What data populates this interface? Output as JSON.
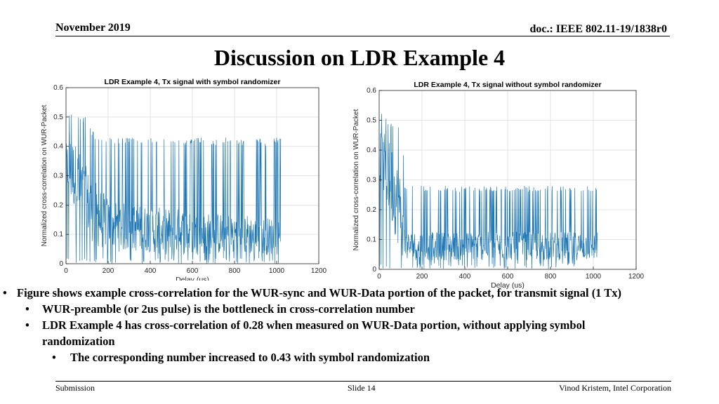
{
  "header": {
    "date": "November 2019",
    "doc_id": "doc.: IEEE 802.11-19/1838r0"
  },
  "title": "Discussion on LDR Example 4",
  "chart_data": [
    {
      "type": "line",
      "title": "LDR Example 4, Tx signal with symbol randomizer",
      "xlabel": "Delay (us)",
      "ylabel": "Normalized cross-correlation on WUR-Packet",
      "xlim": [
        0,
        1200
      ],
      "ylim": [
        0,
        0.6
      ],
      "xticks": [
        0,
        200,
        400,
        600,
        800,
        1000,
        1200
      ],
      "yticks": [
        0,
        0.1,
        0.2,
        0.3,
        0.4,
        0.5,
        0.6
      ],
      "grid": true,
      "color": "#1f77b4",
      "x": [
        0,
        20,
        40,
        60,
        80,
        100,
        120,
        140,
        160,
        200,
        250,
        300,
        350,
        400,
        450,
        500,
        550,
        600,
        650,
        700,
        750,
        800,
        850,
        900,
        950,
        1000,
        1020
      ],
      "envelope_low": [
        0.28,
        0.2,
        0.18,
        0.15,
        0.12,
        0.1,
        0.08,
        0.06,
        0.05,
        0.05,
        0.04,
        0.04,
        0.04,
        0.04,
        0.03,
        0.03,
        0.03,
        0.03,
        0.03,
        0.03,
        0.03,
        0.03,
        0.03,
        0.03,
        0.03,
        0.03,
        0.03
      ],
      "envelope_mid": [
        0.36,
        0.35,
        0.33,
        0.3,
        0.27,
        0.24,
        0.22,
        0.2,
        0.18,
        0.16,
        0.15,
        0.14,
        0.14,
        0.14,
        0.13,
        0.13,
        0.13,
        0.12,
        0.12,
        0.12,
        0.12,
        0.12,
        0.12,
        0.11,
        0.11,
        0.11,
        0.11
      ],
      "envelope_high": [
        0.49,
        0.52,
        0.5,
        0.51,
        0.5,
        0.51,
        0.46,
        0.44,
        0.43,
        0.43,
        0.43,
        0.43,
        0.43,
        0.43,
        0.43,
        0.43,
        0.42,
        0.43,
        0.43,
        0.42,
        0.43,
        0.43,
        0.42,
        0.43,
        0.42,
        0.43,
        0.43
      ]
    },
    {
      "type": "line",
      "title": "LDR Example 4, Tx signal without symbol randomizer",
      "xlabel": "Delay (us)",
      "ylabel": "Normalized cross-correlation on WUR-Packet",
      "xlim": [
        0,
        1200
      ],
      "ylim": [
        0,
        0.6
      ],
      "xticks": [
        0,
        200,
        400,
        600,
        800,
        1000,
        1200
      ],
      "yticks": [
        0,
        0.1,
        0.2,
        0.3,
        0.4,
        0.5,
        0.6
      ],
      "grid": true,
      "color": "#1f77b4",
      "x": [
        0,
        20,
        40,
        60,
        80,
        100,
        110,
        120,
        140,
        200,
        400,
        600,
        800,
        1000,
        1020
      ],
      "envelope_low": [
        0.3,
        0.25,
        0.2,
        0.15,
        0.1,
        0.06,
        0.04,
        0.03,
        0.03,
        0.03,
        0.03,
        0.03,
        0.03,
        0.03,
        0.03
      ],
      "envelope_mid": [
        0.4,
        0.38,
        0.35,
        0.32,
        0.27,
        0.22,
        0.15,
        0.09,
        0.09,
        0.09,
        0.09,
        0.09,
        0.09,
        0.09,
        0.09
      ],
      "envelope_high": [
        0.5,
        0.54,
        0.5,
        0.49,
        0.5,
        0.48,
        0.45,
        0.28,
        0.28,
        0.28,
        0.28,
        0.28,
        0.28,
        0.28,
        0.28
      ]
    }
  ],
  "bullets": {
    "b1": "Figure shows example cross-correlation for the WUR-sync and WUR-Data portion of the packet, for transmit signal (1 Tx)",
    "b2a": "WUR-preamble (or 2us pulse) is the bottleneck in cross-correlation number",
    "b2b_line1": "LDR Example 4 has cross-correlation of 0.28 when measured on WUR-Data portion, without applying symbol",
    "b2b_line2": "randomization",
    "b3": "The corresponding number increased to 0.43 with symbol randomization",
    "bullet_char": "•"
  },
  "footer": {
    "left": "Submission",
    "center": "Slide 14",
    "right": "Vinod Kristem, Intel Corporation"
  }
}
